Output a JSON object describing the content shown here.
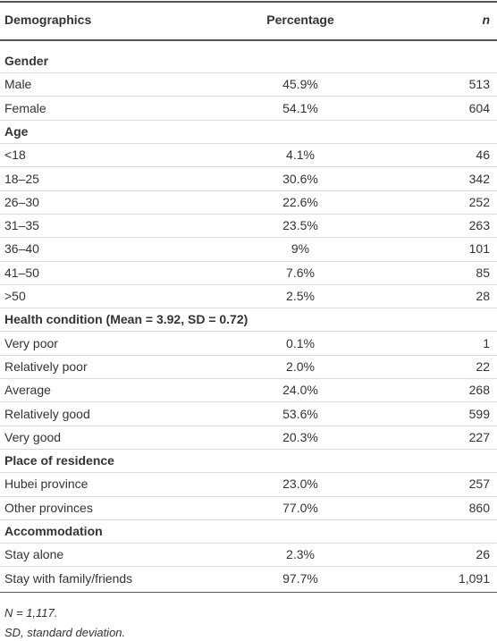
{
  "table": {
    "header": [
      "Demographics",
      "Percentage",
      "n"
    ],
    "sections": [
      {
        "title": "Gender",
        "rows": [
          [
            "Male",
            "45.9%",
            "513"
          ],
          [
            "Female",
            "54.1%",
            "604"
          ]
        ]
      },
      {
        "title": "Age",
        "rows": [
          [
            "<18",
            "4.1%",
            "46"
          ],
          [
            "18–25",
            "30.6%",
            "342"
          ],
          [
            "26–30",
            "22.6%",
            "252"
          ],
          [
            "31–35",
            "23.5%",
            "263"
          ],
          [
            "36–40",
            "9%",
            "101"
          ],
          [
            "41–50",
            "7.6%",
            "85"
          ],
          [
            ">50",
            "2.5%",
            "28"
          ]
        ]
      },
      {
        "title": "Health condition (Mean = 3.92, SD = 0.72)",
        "rows": [
          [
            "Very poor",
            "0.1%",
            "1"
          ],
          [
            "Relatively poor",
            "2.0%",
            "22"
          ],
          [
            "Average",
            "24.0%",
            "268"
          ],
          [
            "Relatively good",
            "53.6%",
            "599"
          ],
          [
            "Very good",
            "20.3%",
            "227"
          ]
        ]
      },
      {
        "title": "Place of residence",
        "rows": [
          [
            "Hubei province",
            "23.0%",
            "257"
          ],
          [
            "Other provinces",
            "77.0%",
            "860"
          ]
        ]
      },
      {
        "title": "Accommodation",
        "rows": [
          [
            "Stay alone",
            "2.3%",
            "26"
          ],
          [
            "Stay with family/friends",
            "97.7%",
            "1,091"
          ]
        ]
      }
    ],
    "footnotes": [
      "N = 1,117.",
      "SD, standard deviation."
    ]
  }
}
